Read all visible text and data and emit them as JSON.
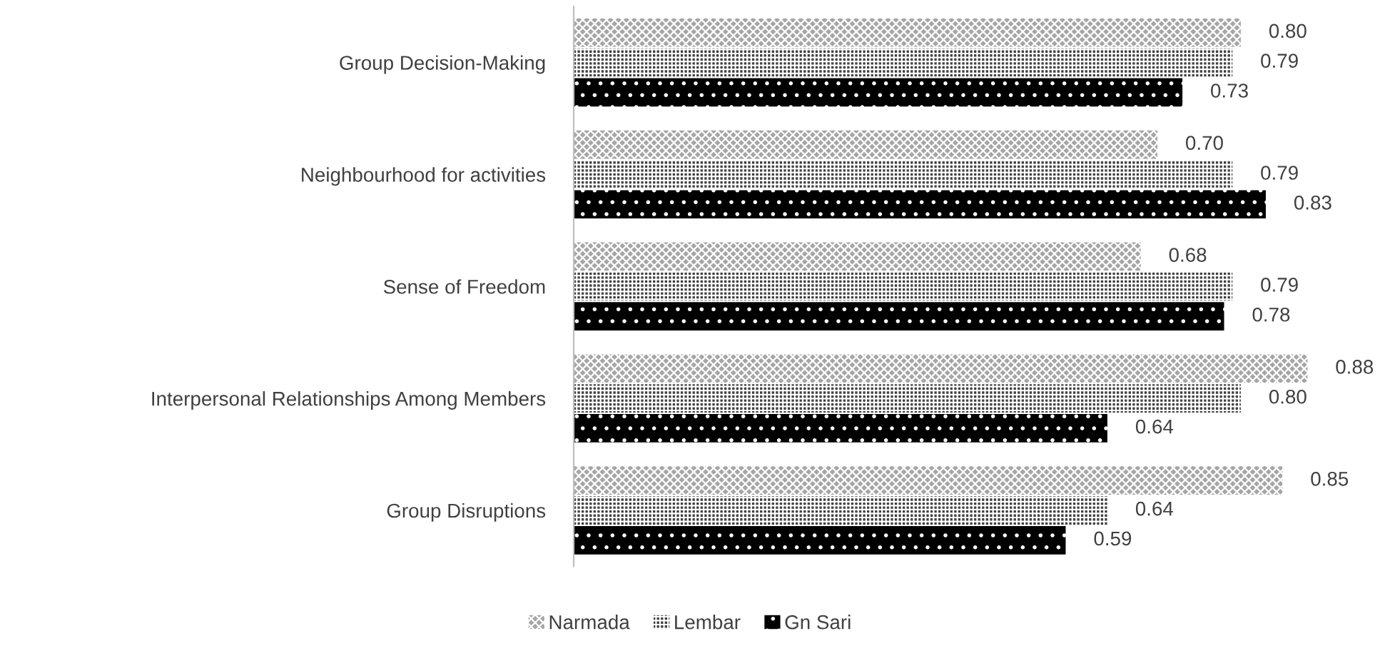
{
  "chart_data": {
    "type": "bar",
    "orientation": "horizontal",
    "categories": [
      "Group Decision-Making",
      "Neighbourhood for activities",
      "Sense of Freedom",
      "Interpersonal Relationships Among Members",
      "Group Disruptions"
    ],
    "series": [
      {
        "name": "Narmada",
        "color": "#a6a6a6",
        "values": [
          0.8,
          0.7,
          0.68,
          0.88,
          0.85
        ],
        "value_labels": [
          "0.80",
          "0.70",
          "0.68",
          "0.88",
          "0.85"
        ]
      },
      {
        "name": "Lembar",
        "color": "#404040",
        "values": [
          0.79,
          0.79,
          0.79,
          0.8,
          0.64
        ],
        "value_labels": [
          "0.79",
          "0.79",
          "0.79",
          "0.80",
          "0.64"
        ]
      },
      {
        "name": "Gn Sari",
        "color": "#000000",
        "values": [
          0.73,
          0.83,
          0.78,
          0.64,
          0.59
        ],
        "value_labels": [
          "0.73",
          "0.83",
          "0.78",
          "0.64",
          "0.59"
        ]
      }
    ],
    "legend": "bottom",
    "grid": false
  }
}
